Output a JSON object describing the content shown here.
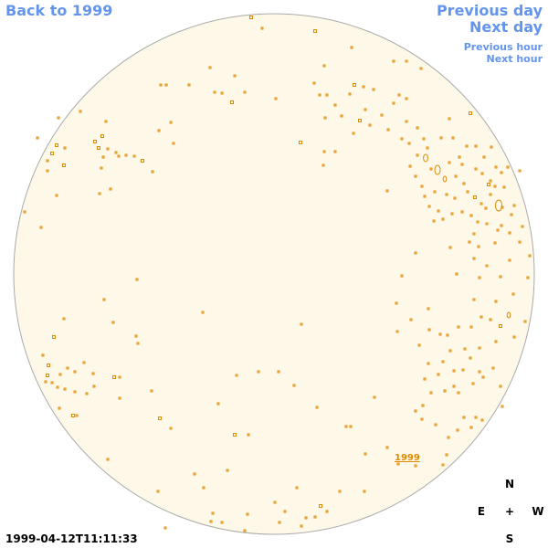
{
  "nav": {
    "back_label": "Back to 1999",
    "prev_day_label": "Previous day",
    "next_day_label": "Next day",
    "prev_hour_label": "Previous hour",
    "next_hour_label": "Next hour"
  },
  "timestamp": "1999-04-12T11:11:33",
  "compass": {
    "north": "N",
    "east": "E",
    "center": "+",
    "west": "W",
    "south": "S"
  },
  "map": {
    "year_link": "1999",
    "colors": {
      "link": "#6495ed",
      "disk_fill": "#fdf8e8",
      "disk_stroke": "#aaaaaa",
      "feature": "#e08a00"
    }
  }
}
